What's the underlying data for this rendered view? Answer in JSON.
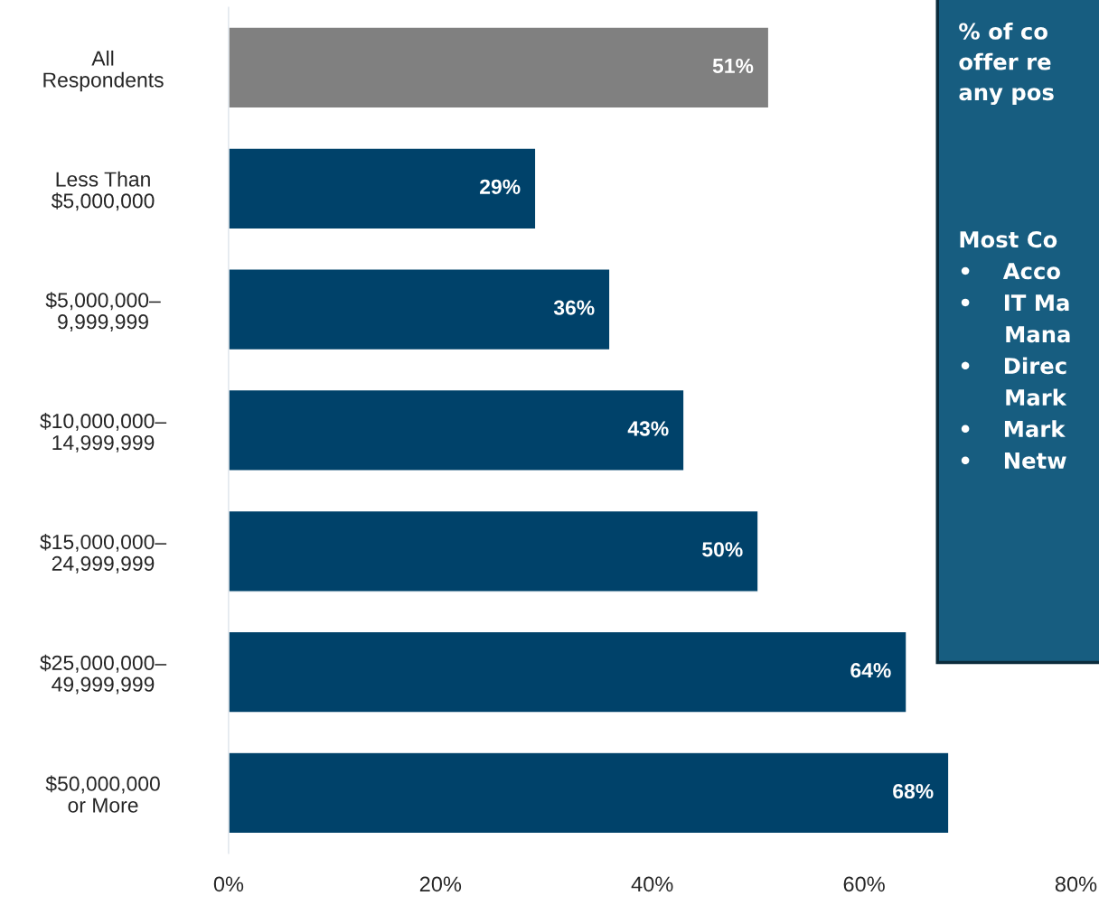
{
  "chart_data": {
    "type": "bar",
    "orientation": "horizontal",
    "categories": [
      "All\nRespondents",
      "Less Than\n$5,000,000",
      "$5,000,000–\n9,999,999",
      "$10,000,000–\n14,999,999",
      "$15,000,000–\n24,999,999",
      "$25,000,000–\n49,999,999",
      "$50,000,000\nor More"
    ],
    "values": [
      51,
      29,
      36,
      43,
      50,
      64,
      68
    ],
    "colors": [
      "#808080",
      "#00426a",
      "#00426a",
      "#00426a",
      "#00426a",
      "#00426a",
      "#00426a"
    ],
    "value_labels": [
      "51%",
      "29%",
      "36%",
      "43%",
      "50%",
      "64%",
      "68%"
    ],
    "xlim": [
      0,
      80
    ],
    "xticks": [
      {
        "value": 0,
        "label": "0%"
      },
      {
        "value": 20,
        "label": "20%"
      },
      {
        "value": 40,
        "label": "40%"
      },
      {
        "value": 60,
        "label": "60%"
      },
      {
        "value": 80,
        "label": "80%"
      }
    ],
    "grid": false,
    "annotations": [
      "% of co\noffer re\nany pos",
      "Most Co\n•    Acco\n•    IT Ma\n      Mana\n•    Direc\n      Mark\n•    Mark\n•    Netw"
    ]
  }
}
